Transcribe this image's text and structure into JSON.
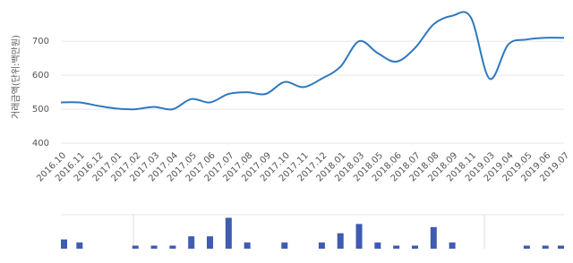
{
  "chart_data": [
    {
      "type": "line",
      "y_label": "거래금액(단위:백만원)",
      "categories": [
        "2016.10",
        "2016.11",
        "2016.12",
        "2017.01",
        "2017.02",
        "2017.03",
        "2017.04",
        "2017.05",
        "2017.06",
        "2017.07",
        "2017.08",
        "2017.09",
        "2017.10",
        "2017.11",
        "2017.12",
        "2018.01",
        "2018.03",
        "2018.05",
        "2018.06",
        "2018.07",
        "2018.08",
        "2018.09",
        "2018.11",
        "2019.03",
        "2019.04",
        "2019.05",
        "2019.06",
        "2019.07"
      ],
      "values": [
        520,
        520,
        510,
        502,
        500,
        507,
        500,
        530,
        520,
        545,
        550,
        545,
        580,
        565,
        590,
        625,
        700,
        665,
        640,
        680,
        750,
        775,
        770,
        590,
        690,
        705,
        710,
        710
      ],
      "color": "#2e78bf",
      "ylim": [
        395,
        795
      ],
      "yticks": [
        400,
        500,
        600,
        700
      ],
      "grid": true
    },
    {
      "type": "bar",
      "values": [
        3,
        2,
        0,
        0,
        1,
        1,
        1,
        4,
        4,
        10,
        2,
        0,
        2,
        0,
        2,
        5,
        8,
        2,
        1,
        1,
        7,
        2,
        0,
        0,
        0,
        1,
        1,
        1
      ],
      "color": "#3f5cb0",
      "ylim": [
        0,
        11
      ]
    }
  ]
}
